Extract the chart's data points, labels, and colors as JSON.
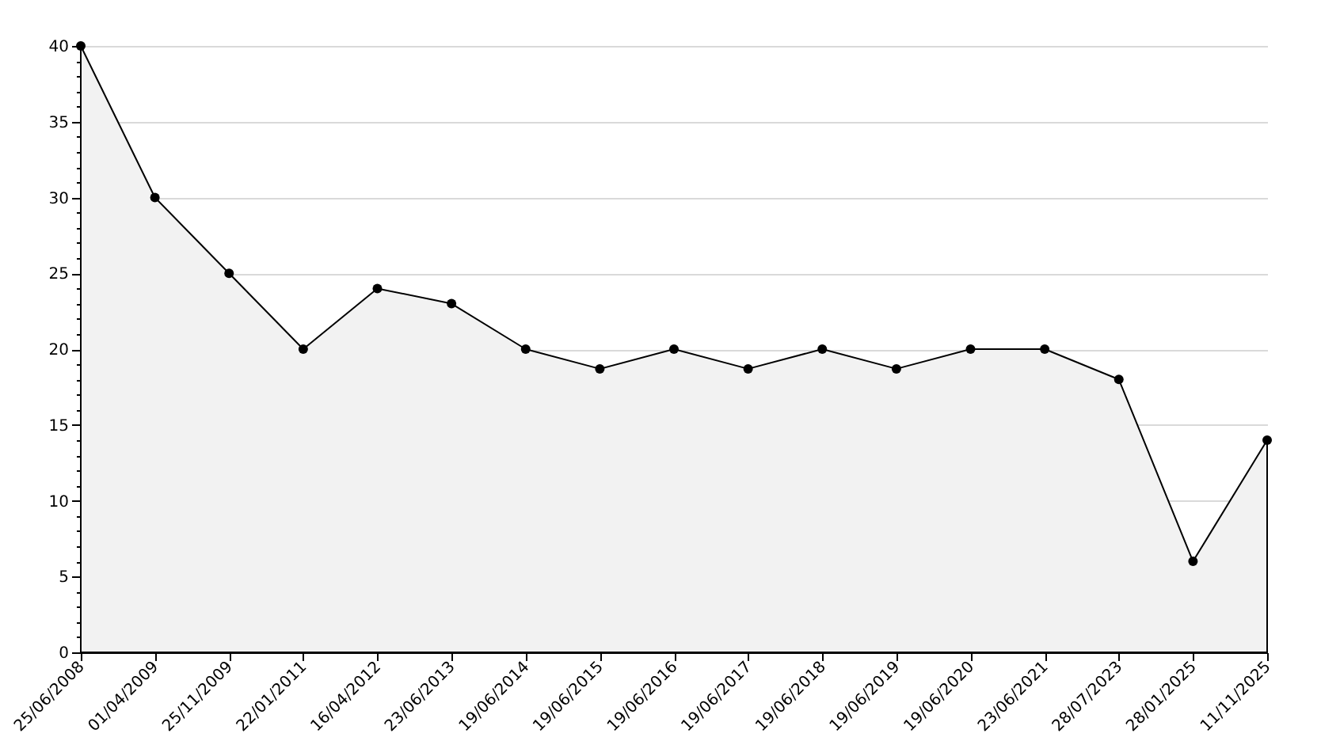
{
  "chart_data": {
    "type": "area",
    "categories": [
      "25/06/2008",
      "01/04/2009",
      "25/11/2009",
      "22/01/2011",
      "16/04/2012",
      "23/06/2013",
      "19/06/2014",
      "19/06/2015",
      "19/06/2016",
      "19/06/2017",
      "19/06/2018",
      "19/06/2019",
      "19/06/2020",
      "23/06/2021",
      "28/07/2023",
      "28/01/2025",
      "11/11/2025"
    ],
    "values": [
      40,
      30,
      25,
      20,
      24,
      23,
      20,
      18.7,
      20,
      18.7,
      20,
      18.7,
      20,
      20,
      18,
      6,
      14
    ],
    "color": "#f2f2f2",
    "marker": "circle",
    "line_style": "solid",
    "grid": "y",
    "ylim": [
      0,
      40
    ],
    "yticks": [
      0,
      {
        "value": 1,
        "label": null
      },
      {
        "value": 2,
        "label": null
      },
      {
        "value": 3,
        "label": null
      },
      {
        "value": 4,
        "label": null
      },
      5,
      {
        "value": 6,
        "label": null
      },
      {
        "value": 7,
        "label": null
      },
      {
        "value": 8,
        "label": null
      },
      {
        "value": 9,
        "label": null
      },
      10,
      {
        "value": 11,
        "label": null
      },
      {
        "value": 12,
        "label": null
      },
      {
        "value": 13,
        "label": null
      },
      {
        "value": 14,
        "label": null
      },
      15,
      {
        "value": 16,
        "label": null
      },
      {
        "value": 17,
        "label": null
      },
      {
        "value": 18,
        "label": null
      },
      {
        "value": 19,
        "label": null
      },
      20,
      {
        "value": 21,
        "label": null
      },
      {
        "value": 22,
        "label": null
      },
      {
        "value": 23,
        "label": null
      },
      {
        "value": 24,
        "label": null
      },
      25,
      {
        "value": 26,
        "label": null
      },
      {
        "value": 27,
        "label": null
      },
      {
        "value": 28,
        "label": null
      },
      {
        "value": 29,
        "label": null
      },
      30,
      {
        "value": 31,
        "label": null
      },
      {
        "value": 32,
        "label": null
      },
      {
        "value": 33,
        "label": null
      },
      {
        "value": 34,
        "label": null
      },
      35,
      {
        "value": 36,
        "label": null
      },
      {
        "value": 37,
        "label": null
      },
      {
        "value": 38,
        "label": null
      },
      {
        "value": 39,
        "label": null
      },
      40
    ]
  }
}
